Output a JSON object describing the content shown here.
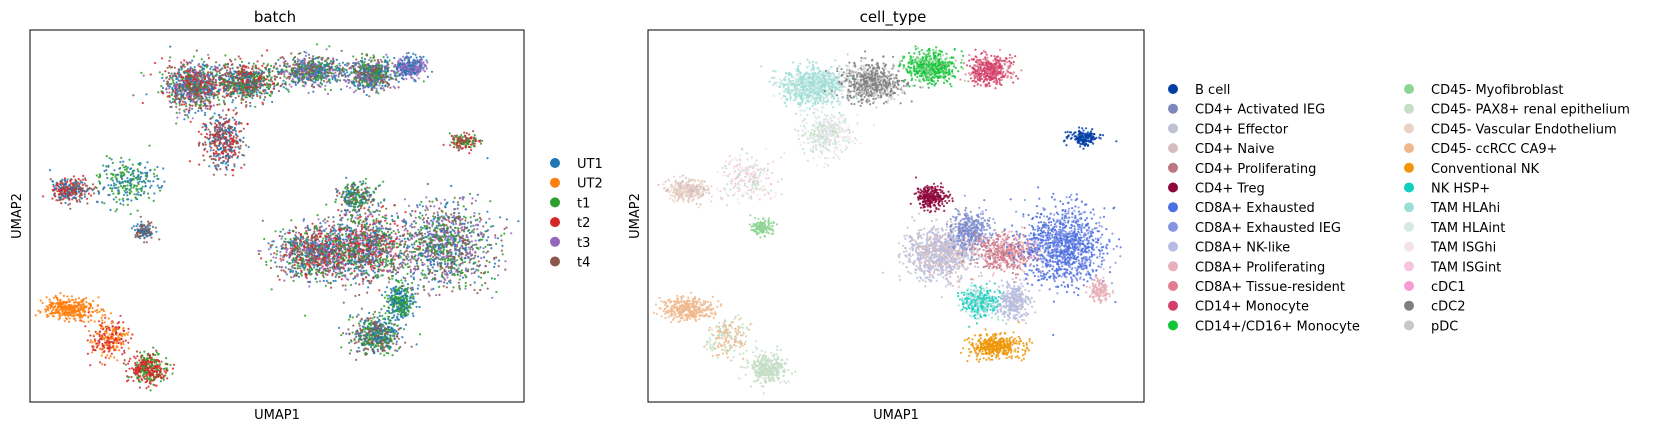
{
  "chart_data": [
    {
      "type": "scatter",
      "title": "batch",
      "xlabel": "UMAP1",
      "ylabel": "UMAP2",
      "xlim": [
        0,
        100
      ],
      "ylim": [
        0,
        100
      ],
      "grid": false,
      "axis_ticks": false,
      "legend_placement": "right",
      "legend": [
        {
          "name": "UT1",
          "color": "#1f77b4"
        },
        {
          "name": "UT2",
          "color": "#ff7f0e"
        },
        {
          "name": "t1",
          "color": "#2ca02c"
        },
        {
          "name": "t2",
          "color": "#d62728"
        },
        {
          "name": "t3",
          "color": "#9467bd"
        },
        {
          "name": "t4",
          "color": "#8c564b"
        }
      ],
      "clusters": [
        {
          "x": 33,
          "y": 85,
          "rx": 6,
          "ry": 6,
          "n": 900,
          "colors": [
            "#d62728",
            "#1f77b4",
            "#2ca02c",
            "#8c564b",
            "#9467bd"
          ]
        },
        {
          "x": 44,
          "y": 86,
          "rx": 6,
          "ry": 5,
          "n": 700,
          "colors": [
            "#2ca02c",
            "#1f77b4",
            "#d62728",
            "#8c564b"
          ]
        },
        {
          "x": 57,
          "y": 89,
          "rx": 6,
          "ry": 4,
          "n": 600,
          "colors": [
            "#9467bd",
            "#8c564b",
            "#2ca02c",
            "#1f77b4"
          ]
        },
        {
          "x": 69,
          "y": 88,
          "rx": 5,
          "ry": 4,
          "n": 600,
          "colors": [
            "#8c564b",
            "#9467bd",
            "#1f77b4",
            "#2ca02c"
          ]
        },
        {
          "x": 77,
          "y": 90,
          "rx": 3,
          "ry": 3,
          "n": 300,
          "colors": [
            "#9467bd",
            "#1f77b4"
          ]
        },
        {
          "x": 39,
          "y": 70,
          "rx": 4,
          "ry": 7,
          "n": 400,
          "colors": [
            "#d62728",
            "#8c564b",
            "#1f77b4"
          ]
        },
        {
          "x": 8,
          "y": 57,
          "rx": 4,
          "ry": 3,
          "n": 300,
          "colors": [
            "#8c564b",
            "#1f77b4",
            "#d62728"
          ]
        },
        {
          "x": 20,
          "y": 59,
          "rx": 6,
          "ry": 6,
          "n": 250,
          "colors": [
            "#1f77b4",
            "#2ca02c"
          ]
        },
        {
          "x": 23,
          "y": 46,
          "rx": 2,
          "ry": 2,
          "n": 120,
          "colors": [
            "#8c564b",
            "#1f77b4"
          ]
        },
        {
          "x": 88,
          "y": 70,
          "rx": 3,
          "ry": 2,
          "n": 150,
          "colors": [
            "#d62728",
            "#2ca02c",
            "#8c564b"
          ]
        },
        {
          "x": 58,
          "y": 40,
          "rx": 8,
          "ry": 7,
          "n": 1000,
          "colors": [
            "#8c564b",
            "#1f77b4",
            "#2ca02c",
            "#d62728",
            "#9467bd"
          ]
        },
        {
          "x": 68,
          "y": 42,
          "rx": 8,
          "ry": 9,
          "n": 1000,
          "colors": [
            "#1f77b4",
            "#8c564b",
            "#d62728",
            "#2ca02c",
            "#9467bd"
          ]
        },
        {
          "x": 84,
          "y": 42,
          "rx": 9,
          "ry": 11,
          "n": 1100,
          "colors": [
            "#9467bd",
            "#2ca02c",
            "#1f77b4",
            "#8c564b"
          ]
        },
        {
          "x": 66,
          "y": 55,
          "rx": 4,
          "ry": 4,
          "n": 250,
          "colors": [
            "#2ca02c",
            "#8c564b",
            "#1f77b4"
          ]
        },
        {
          "x": 70,
          "y": 18,
          "rx": 5,
          "ry": 5,
          "n": 500,
          "colors": [
            "#8c564b",
            "#1f77b4",
            "#2ca02c"
          ]
        },
        {
          "x": 75,
          "y": 27,
          "rx": 3,
          "ry": 5,
          "n": 300,
          "colors": [
            "#1f77b4",
            "#2ca02c"
          ]
        },
        {
          "x": 8,
          "y": 25,
          "rx": 5,
          "ry": 3,
          "n": 350,
          "colors": [
            "#ff7f0e"
          ]
        },
        {
          "x": 16,
          "y": 17,
          "rx": 4,
          "ry": 5,
          "n": 250,
          "colors": [
            "#ff7f0e",
            "#d62728"
          ]
        },
        {
          "x": 24,
          "y": 9,
          "rx": 4,
          "ry": 4,
          "n": 350,
          "colors": [
            "#d62728",
            "#d62728",
            "#2ca02c"
          ]
        }
      ]
    },
    {
      "type": "scatter",
      "title": "cell_type",
      "xlabel": "UMAP1",
      "ylabel": "UMAP2",
      "xlim": [
        0,
        100
      ],
      "ylim": [
        0,
        100
      ],
      "grid": false,
      "axis_ticks": false,
      "legend_placement": "right",
      "legend": [
        {
          "name": "B cell",
          "color": "#023fa5"
        },
        {
          "name": "CD4+ Activated IEG",
          "color": "#7d87b9"
        },
        {
          "name": "CD4+ Effector",
          "color": "#bec1d4"
        },
        {
          "name": "CD4+ Naive",
          "color": "#d6bcc0"
        },
        {
          "name": "CD4+ Proliferating",
          "color": "#bb7784"
        },
        {
          "name": "CD4+ Treg",
          "color": "#8e063b"
        },
        {
          "name": "CD8A+ Exhausted",
          "color": "#4a6fe3"
        },
        {
          "name": "CD8A+ Exhausted IEG",
          "color": "#8595e1"
        },
        {
          "name": "CD8A+ NK-like",
          "color": "#b5bbe3"
        },
        {
          "name": "CD8A+ Proliferating",
          "color": "#e6afb9"
        },
        {
          "name": "CD8A+ Tissue-resident",
          "color": "#e07b91"
        },
        {
          "name": "CD14+ Monocyte",
          "color": "#d33f6a"
        },
        {
          "name": "CD14+/CD16+ Monocyte",
          "color": "#11c638"
        },
        {
          "name": "CD45- Myofibroblast",
          "color": "#8dd593"
        },
        {
          "name": "CD45- PAX8+ renal epithelium",
          "color": "#c6dec7"
        },
        {
          "name": "CD45- Vascular Endothelium",
          "color": "#ead3c6"
        },
        {
          "name": "CD45- ccRCC CA9+",
          "color": "#f0b98d"
        },
        {
          "name": "Conventional NK",
          "color": "#ef9708"
        },
        {
          "name": "NK HSP+",
          "color": "#0fcfc0"
        },
        {
          "name": "TAM HLAhi",
          "color": "#9cded6"
        },
        {
          "name": "TAM HLAint",
          "color": "#d5eae7"
        },
        {
          "name": "TAM ISGhi",
          "color": "#f3e1eb"
        },
        {
          "name": "TAM ISGint",
          "color": "#f6c4e1"
        },
        {
          "name": "cDC1",
          "color": "#f79cd4"
        },
        {
          "name": "cDC2",
          "color": "#7f7f7f"
        },
        {
          "name": "pDC",
          "color": "#c7c7c7"
        }
      ],
      "clusters": [
        {
          "x": 33,
          "y": 85,
          "rx": 6,
          "ry": 5,
          "n": 800,
          "colors": [
            "#9cded6",
            "#9cded6",
            "#d5eae7"
          ]
        },
        {
          "x": 45,
          "y": 86,
          "rx": 6,
          "ry": 5,
          "n": 700,
          "colors": [
            "#7f7f7f",
            "#7f7f7f",
            "#c7c7c7"
          ]
        },
        {
          "x": 57,
          "y": 90,
          "rx": 5,
          "ry": 4,
          "n": 550,
          "colors": [
            "#11c638",
            "#11c638",
            "#8dd593"
          ]
        },
        {
          "x": 69,
          "y": 89,
          "rx": 4,
          "ry": 4,
          "n": 450,
          "colors": [
            "#d33f6a",
            "#d33f6a",
            "#e07b91"
          ]
        },
        {
          "x": 36,
          "y": 72,
          "rx": 5,
          "ry": 6,
          "n": 400,
          "colors": [
            "#d5eae7",
            "#f3e1eb",
            "#c6dec7"
          ]
        },
        {
          "x": 8,
          "y": 57,
          "rx": 4,
          "ry": 3,
          "n": 300,
          "colors": [
            "#ead3c6",
            "#ead3c6",
            "#d6bcc0"
          ]
        },
        {
          "x": 20,
          "y": 60,
          "rx": 6,
          "ry": 6,
          "n": 220,
          "colors": [
            "#f6c4e1",
            "#f3e1eb",
            "#c6dec7"
          ]
        },
        {
          "x": 23,
          "y": 47,
          "rx": 2,
          "ry": 2,
          "n": 140,
          "colors": [
            "#8dd593"
          ]
        },
        {
          "x": 88,
          "y": 71,
          "rx": 3,
          "ry": 2,
          "n": 160,
          "colors": [
            "#023fa5"
          ]
        },
        {
          "x": 59,
          "y": 40,
          "rx": 7,
          "ry": 7,
          "n": 900,
          "colors": [
            "#d6bcc0",
            "#bec1d4",
            "#b5bbe3"
          ]
        },
        {
          "x": 57,
          "y": 55,
          "rx": 3,
          "ry": 3,
          "n": 250,
          "colors": [
            "#8e063b"
          ]
        },
        {
          "x": 65,
          "y": 46,
          "rx": 4,
          "ry": 5,
          "n": 350,
          "colors": [
            "#8595e1",
            "#7d87b9"
          ]
        },
        {
          "x": 72,
          "y": 40,
          "rx": 6,
          "ry": 5,
          "n": 500,
          "colors": [
            "#bb7784",
            "#e07b91",
            "#e6afb9"
          ]
        },
        {
          "x": 84,
          "y": 42,
          "rx": 8,
          "ry": 10,
          "n": 1100,
          "colors": [
            "#4a6fe3",
            "#4a6fe3",
            "#8595e1"
          ]
        },
        {
          "x": 91,
          "y": 30,
          "rx": 2,
          "ry": 3,
          "n": 140,
          "colors": [
            "#e6afb9"
          ]
        },
        {
          "x": 67,
          "y": 27,
          "rx": 4,
          "ry": 4,
          "n": 350,
          "colors": [
            "#0fcfc0",
            "#9cded6"
          ]
        },
        {
          "x": 74,
          "y": 27,
          "rx": 3,
          "ry": 5,
          "n": 300,
          "colors": [
            "#b5bbe3",
            "#bec1d4"
          ]
        },
        {
          "x": 70,
          "y": 15,
          "rx": 5,
          "ry": 3,
          "n": 400,
          "colors": [
            "#ef9708"
          ]
        },
        {
          "x": 8,
          "y": 25,
          "rx": 5,
          "ry": 3,
          "n": 350,
          "colors": [
            "#f0b98d"
          ]
        },
        {
          "x": 16,
          "y": 17,
          "rx": 4,
          "ry": 5,
          "n": 200,
          "colors": [
            "#c6dec7",
            "#f0b98d"
          ]
        },
        {
          "x": 24,
          "y": 9,
          "rx": 4,
          "ry": 4,
          "n": 350,
          "colors": [
            "#c6dec7"
          ]
        }
      ]
    }
  ]
}
